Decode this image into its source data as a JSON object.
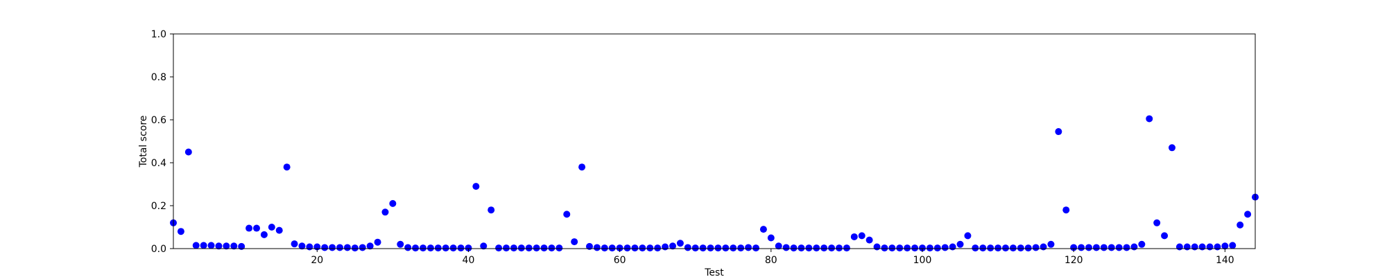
{
  "chart_data": {
    "type": "scatter",
    "xlabel": "Test",
    "ylabel": "Total score",
    "xlim": [
      1,
      144
    ],
    "ylim": [
      0,
      1.0
    ],
    "xticks": [
      20,
      40,
      60,
      80,
      100,
      120,
      140
    ],
    "yticks": [
      0.0,
      0.2,
      0.4,
      0.6,
      0.8,
      1.0
    ],
    "xtick_labels": [
      "20",
      "40",
      "60",
      "80",
      "100",
      "120",
      "140"
    ],
    "ytick_labels": [
      "0.0",
      "0.2",
      "0.4",
      "0.6",
      "0.8",
      "1.0"
    ],
    "grid": false,
    "marker_color": "#0000ff",
    "x": [
      1,
      2,
      3,
      4,
      5,
      6,
      7,
      8,
      9,
      10,
      11,
      12,
      13,
      14,
      15,
      16,
      17,
      18,
      19,
      20,
      21,
      22,
      23,
      24,
      25,
      26,
      27,
      28,
      29,
      30,
      31,
      32,
      33,
      34,
      35,
      36,
      37,
      38,
      39,
      40,
      41,
      42,
      43,
      44,
      45,
      46,
      47,
      48,
      49,
      50,
      51,
      52,
      53,
      54,
      55,
      56,
      57,
      58,
      59,
      60,
      61,
      62,
      63,
      64,
      65,
      66,
      67,
      68,
      69,
      70,
      71,
      72,
      73,
      74,
      75,
      76,
      77,
      78,
      79,
      80,
      81,
      82,
      83,
      84,
      85,
      86,
      87,
      88,
      89,
      90,
      91,
      92,
      93,
      94,
      95,
      96,
      97,
      98,
      99,
      100,
      101,
      102,
      103,
      104,
      105,
      106,
      107,
      108,
      109,
      110,
      111,
      112,
      113,
      114,
      115,
      116,
      117,
      118,
      119,
      120,
      121,
      122,
      123,
      124,
      125,
      126,
      127,
      128,
      129,
      130,
      131,
      132,
      133,
      134,
      135,
      136,
      137,
      138,
      139,
      140,
      141,
      142,
      143,
      144
    ],
    "y": [
      0.12,
      0.08,
      0.45,
      0.015,
      0.015,
      0.015,
      0.012,
      0.012,
      0.012,
      0.01,
      0.095,
      0.095,
      0.065,
      0.1,
      0.085,
      0.38,
      0.022,
      0.012,
      0.008,
      0.008,
      0.005,
      0.005,
      0.005,
      0.005,
      0.003,
      0.005,
      0.012,
      0.03,
      0.17,
      0.21,
      0.02,
      0.005,
      0.003,
      0.003,
      0.003,
      0.003,
      0.003,
      0.003,
      0.003,
      0.003,
      0.29,
      0.012,
      0.18,
      0.003,
      0.003,
      0.003,
      0.003,
      0.003,
      0.003,
      0.003,
      0.003,
      0.003,
      0.16,
      0.032,
      0.38,
      0.01,
      0.005,
      0.003,
      0.003,
      0.003,
      0.003,
      0.003,
      0.003,
      0.003,
      0.003,
      0.008,
      0.012,
      0.025,
      0.005,
      0.003,
      0.003,
      0.003,
      0.003,
      0.003,
      0.003,
      0.003,
      0.005,
      0.003,
      0.09,
      0.05,
      0.012,
      0.005,
      0.003,
      0.003,
      0.003,
      0.003,
      0.003,
      0.003,
      0.003,
      0.003,
      0.055,
      0.06,
      0.04,
      0.008,
      0.003,
      0.003,
      0.003,
      0.003,
      0.003,
      0.003,
      0.003,
      0.003,
      0.005,
      0.008,
      0.02,
      0.06,
      0.003,
      0.003,
      0.003,
      0.003,
      0.003,
      0.003,
      0.003,
      0.003,
      0.005,
      0.008,
      0.02,
      0.545,
      0.18,
      0.005,
      0.005,
      0.005,
      0.005,
      0.005,
      0.005,
      0.005,
      0.005,
      0.008,
      0.02,
      0.605,
      0.12,
      0.06,
      0.47,
      0.008,
      0.008,
      0.008,
      0.008,
      0.008,
      0.008,
      0.012,
      0.015,
      0.11,
      0.16,
      0.24
    ]
  }
}
